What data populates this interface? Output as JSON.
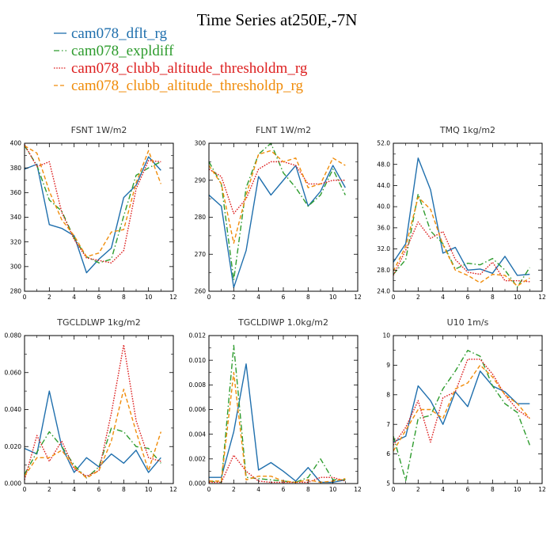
{
  "title": "Time Series at250E,-7N",
  "legend": [
    {
      "name": "cam078_dflt_rg",
      "color": "#1f6fad",
      "dash": "solid"
    },
    {
      "name": "cam078_expldiff",
      "color": "#2e9c2e",
      "dash": "dashdot"
    },
    {
      "name": "cam078_clubb_altitude_thresholdm_rg",
      "color": "#dd1f1f",
      "dash": "dot"
    },
    {
      "name": "cam078_clubb_altitude_thresholdp_rg",
      "color": "#f08c0a",
      "dash": "dash"
    }
  ],
  "chart_data": [
    {
      "type": "line",
      "title": "FSNT   1W/m2",
      "xlim": [
        0,
        12
      ],
      "xticks": [
        0,
        2,
        4,
        6,
        8,
        10,
        12
      ],
      "ylim": [
        280,
        400
      ],
      "yticks": [
        280,
        300,
        320,
        340,
        360,
        380,
        400
      ],
      "ytick_labels": [
        "280",
        "300",
        "320",
        "340",
        "360",
        "380",
        "400"
      ],
      "x": [
        0,
        1,
        2,
        3,
        4,
        5,
        6,
        7,
        8,
        9,
        10,
        11
      ],
      "series": [
        {
          "name": "cam078_dflt_rg",
          "values": [
            379,
            383,
            334,
            331,
            325,
            295,
            306,
            315,
            356,
            366,
            389,
            378
          ]
        },
        {
          "name": "cam078_expldiff",
          "values": [
            398,
            382,
            354,
            345,
            323,
            308,
            303,
            306,
            341,
            374,
            380,
            385
          ]
        },
        {
          "name": "cam078_clubb_altitude_thresholdm_rg",
          "values": [
            399,
            381,
            385,
            344,
            322,
            307,
            305,
            303,
            313,
            363,
            386,
            385
          ]
        },
        {
          "name": "cam078_clubb_altitude_thresholdp_rg",
          "values": [
            398,
            392,
            361,
            338,
            325,
            308,
            311,
            328,
            330,
            368,
            394,
            367
          ]
        }
      ]
    },
    {
      "type": "line",
      "title": "FLNT   1W/m2",
      "xlim": [
        0,
        12
      ],
      "xticks": [
        0,
        2,
        4,
        6,
        8,
        10,
        12
      ],
      "ylim": [
        260,
        300
      ],
      "yticks": [
        260,
        270,
        280,
        290,
        300
      ],
      "ytick_labels": [
        "260",
        "270",
        "280",
        "290",
        "300"
      ],
      "x": [
        0,
        1,
        2,
        3,
        4,
        5,
        6,
        7,
        8,
        9,
        10,
        11
      ],
      "series": [
        {
          "name": "cam078_dflt_rg",
          "values": [
            286,
            283,
            261,
            271,
            291,
            286,
            290,
            294,
            283,
            287,
            294,
            288
          ]
        },
        {
          "name": "cam078_expldiff",
          "values": [
            295,
            289,
            263,
            288,
            297,
            300,
            292,
            288,
            283,
            286,
            293,
            286
          ]
        },
        {
          "name": "cam078_clubb_altitude_thresholdm_rg",
          "values": [
            293,
            291,
            281,
            285,
            293,
            295,
            295,
            294,
            289,
            289,
            290,
            290
          ]
        },
        {
          "name": "cam078_clubb_altitude_thresholdp_rg",
          "values": [
            294,
            289,
            273,
            286,
            297,
            298,
            295,
            296,
            288,
            289,
            296,
            294
          ]
        }
      ]
    },
    {
      "type": "line",
      "title": "TMQ   1kg/m2",
      "xlim": [
        0,
        12
      ],
      "xticks": [
        0,
        2,
        4,
        6,
        8,
        10,
        12
      ],
      "ylim": [
        24,
        52
      ],
      "yticks": [
        24,
        28,
        32,
        36,
        40,
        44,
        48,
        52
      ],
      "ytick_labels": [
        "24.0",
        "28.0",
        "32.0",
        "36.0",
        "40.0",
        "44.0",
        "48.0",
        "52.0"
      ],
      "x": [
        0,
        1,
        2,
        3,
        4,
        5,
        6,
        7,
        8,
        9,
        10,
        11
      ],
      "series": [
        {
          "name": "cam078_dflt_rg",
          "values": [
            29.5,
            33.0,
            49.2,
            43.2,
            31.2,
            32.3,
            28.0,
            28.2,
            27.4,
            30.6,
            27.0,
            27.2
          ]
        },
        {
          "name": "cam078_expldiff",
          "values": [
            27.2,
            30.0,
            42.4,
            35.4,
            33.0,
            28.2,
            29.3,
            29.0,
            30.2,
            28.0,
            24.8,
            28.5
          ]
        },
        {
          "name": "cam078_clubb_altitude_thresholdm_rg",
          "values": [
            27.0,
            31.8,
            37.1,
            34.0,
            35.3,
            30.0,
            27.6,
            27.2,
            29.5,
            26.0,
            26.0,
            25.8
          ]
        },
        {
          "name": "cam078_clubb_altitude_thresholdp_rg",
          "values": [
            27.8,
            32.5,
            41.8,
            39.5,
            32.8,
            28.0,
            27.0,
            25.6,
            27.2,
            27.0,
            25.0,
            26.5
          ]
        }
      ]
    },
    {
      "type": "line",
      "title": "TGCLDLWP   1kg/m2",
      "xlim": [
        0,
        12
      ],
      "xticks": [
        0,
        2,
        4,
        6,
        8,
        10,
        12
      ],
      "ylim": [
        0,
        0.08
      ],
      "yticks": [
        0,
        0.02,
        0.04,
        0.06,
        0.08
      ],
      "ytick_labels": [
        "0.000",
        "0.020",
        "0.040",
        "0.060",
        "0.080"
      ],
      "x": [
        0,
        1,
        2,
        3,
        4,
        5,
        6,
        7,
        8,
        9,
        10,
        11
      ],
      "series": [
        {
          "name": "cam078_dflt_rg",
          "values": [
            0.019,
            0.016,
            0.05,
            0.02,
            0.006,
            0.014,
            0.009,
            0.016,
            0.011,
            0.018,
            0.006,
            0.014
          ]
        },
        {
          "name": "cam078_expldiff",
          "values": [
            0.005,
            0.017,
            0.028,
            0.02,
            0.01,
            0.003,
            0.009,
            0.03,
            0.028,
            0.02,
            0.019,
            0.011
          ]
        },
        {
          "name": "cam078_clubb_altitude_thresholdm_rg",
          "values": [
            0.002,
            0.026,
            0.012,
            0.023,
            0.008,
            0.004,
            0.007,
            0.038,
            0.075,
            0.034,
            0.014,
            0.012
          ]
        },
        {
          "name": "cam078_clubb_altitude_thresholdp_rg",
          "values": [
            0.004,
            0.014,
            0.014,
            0.018,
            0.009,
            0.003,
            0.007,
            0.023,
            0.051,
            0.028,
            0.007,
            0.028
          ]
        }
      ]
    },
    {
      "type": "line",
      "title": "TGCLDIWP   1.0kg/m2",
      "xlim": [
        0,
        12
      ],
      "xticks": [
        0,
        2,
        4,
        6,
        8,
        10,
        12
      ],
      "ylim": [
        0,
        0.012
      ],
      "yticks": [
        0,
        0.002,
        0.004,
        0.006,
        0.008,
        0.01,
        0.012
      ],
      "ytick_labels": [
        "0.000",
        "0.002",
        "0.004",
        "0.006",
        "0.008",
        "0.010",
        "0.012"
      ],
      "x": [
        0,
        1,
        2,
        3,
        4,
        5,
        6,
        7,
        8,
        9,
        10,
        11
      ],
      "series": [
        {
          "name": "cam078_dflt_rg",
          "values": [
            0.0005,
            0.0005,
            0.0042,
            0.0097,
            0.0011,
            0.0017,
            0.001,
            0.0002,
            0.0013,
            0.0001,
            0.0001,
            0.0003
          ]
        },
        {
          "name": "cam078_expldiff",
          "values": [
            0.0002,
            0.0001,
            0.0112,
            0.0005,
            0.0004,
            0.0003,
            0.0002,
            0.0001,
            0.0005,
            0.002,
            0.0003,
            0.0003
          ]
        },
        {
          "name": "cam078_clubb_altitude_thresholdm_rg",
          "values": [
            0.0001,
            0.0001,
            0.0023,
            0.001,
            0.0002,
            0.0001,
            0.0001,
            0.0001,
            0.0001,
            0.0005,
            0.0005,
            0.0002
          ]
        },
        {
          "name": "cam078_clubb_altitude_thresholdp_rg",
          "values": [
            0.0002,
            0.0002,
            0.009,
            0.0003,
            0.0006,
            0.0006,
            0.0002,
            0.0001,
            0.0003,
            0.0001,
            0.0002,
            0.0004
          ]
        }
      ]
    },
    {
      "type": "line",
      "title": "U10   1m/s",
      "xlim": [
        0,
        12
      ],
      "xticks": [
        0,
        2,
        4,
        6,
        8,
        10,
        12
      ],
      "ylim": [
        5,
        10
      ],
      "yticks": [
        5,
        6,
        7,
        8,
        9,
        10
      ],
      "ytick_labels": [
        "5",
        "6",
        "7",
        "8",
        "9",
        "10"
      ],
      "x": [
        0,
        1,
        2,
        3,
        4,
        5,
        6,
        7,
        8,
        9,
        10,
        11
      ],
      "series": [
        {
          "name": "cam078_dflt_rg",
          "values": [
            6.4,
            6.6,
            8.3,
            7.8,
            7.0,
            8.1,
            7.6,
            8.8,
            8.3,
            8.1,
            7.7,
            7.7
          ]
        },
        {
          "name": "cam078_expldiff",
          "values": [
            6.6,
            5.1,
            7.2,
            7.3,
            8.2,
            8.8,
            9.5,
            9.3,
            8.3,
            7.7,
            7.4,
            6.3
          ]
        },
        {
          "name": "cam078_clubb_altitude_thresholdm_rg",
          "values": [
            6.3,
            6.9,
            7.8,
            6.4,
            7.9,
            8.1,
            9.2,
            9.2,
            8.7,
            8.0,
            7.5,
            7.2
          ]
        },
        {
          "name": "cam078_clubb_altitude_thresholdp_rg",
          "values": [
            6.1,
            6.8,
            7.5,
            7.5,
            7.2,
            8.2,
            8.4,
            9.0,
            8.6,
            8.0,
            7.7,
            7.2
          ]
        }
      ]
    }
  ]
}
